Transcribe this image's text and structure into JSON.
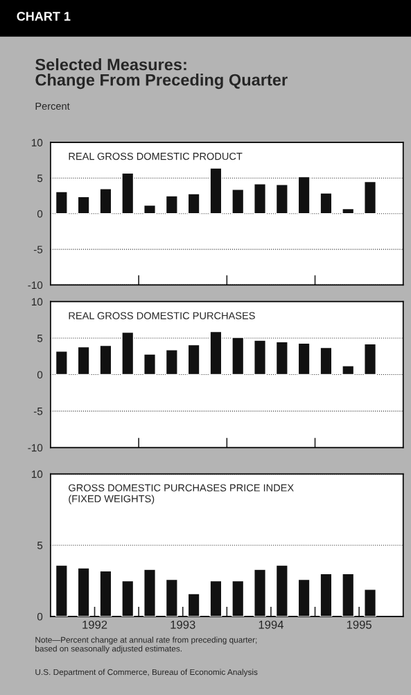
{
  "chart_data": [
    {
      "type": "bar",
      "title": "REAL GROSS DOMESTIC PRODUCT",
      "ylabel": "Percent",
      "annotations": [
        "CHART 1",
        "Selected Measures:\nChange From Preceding Quarter"
      ],
      "x": [
        1992.125,
        1992.375,
        1992.625,
        1992.875,
        1993.125,
        1993.375,
        1993.625,
        1993.875,
        1994.125,
        1994.375,
        1994.625,
        1994.875,
        1995.125,
        1995.375,
        1995.625
      ],
      "series": [
        {
          "color": "#111111",
          "values": [
            3.1,
            2.4,
            3.5,
            5.7,
            1.2,
            2.5,
            2.8,
            6.4,
            3.4,
            4.2,
            4.1,
            5.2,
            2.9,
            0.7,
            4.5
          ]
        }
      ],
      "xlim": [
        1992,
        1996
      ],
      "xticks": [
        {
          "value": 1993,
          "label": null
        },
        {
          "value": 1994,
          "label": null
        },
        {
          "value": 1995,
          "label": null
        }
      ],
      "ylim": [
        -10,
        10
      ],
      "yticks": [
        -10,
        -5,
        0,
        5,
        10
      ],
      "grid": "y",
      "tick_labels": "y"
    },
    {
      "type": "bar",
      "title": "REAL GROSS DOMESTIC PURCHASES",
      "x": [
        1992.125,
        1992.375,
        1992.625,
        1992.875,
        1993.125,
        1993.375,
        1993.625,
        1993.875,
        1994.125,
        1994.375,
        1994.625,
        1994.875,
        1995.125,
        1995.375,
        1995.625
      ],
      "series": [
        {
          "color": "#111111",
          "values": [
            3.2,
            3.8,
            4.0,
            5.8,
            2.8,
            3.4,
            4.1,
            5.9,
            5.1,
            4.7,
            4.5,
            4.3,
            3.7,
            1.2,
            4.2
          ]
        }
      ],
      "xlim": [
        1992,
        1996
      ],
      "xticks": [
        {
          "value": 1993,
          "label": null
        },
        {
          "value": 1994,
          "label": null
        },
        {
          "value": 1995,
          "label": null
        }
      ],
      "ylim": [
        -10,
        10
      ],
      "yticks": [
        -10,
        -5,
        0,
        5,
        10
      ],
      "grid": "y",
      "tick_labels": "y"
    },
    {
      "type": "bar",
      "title": "GROSS DOMESTIC PURCHASES PRICE INDEX\n(FIXED WEIGHTS)",
      "annotations": [
        "Note—Percent change at annual rate from preceding quarter;\nbased on seasonally adjusted estimates.",
        "U.S. Department of Commerce, Bureau of Economic Analysis"
      ],
      "x": [
        1992.125,
        1992.375,
        1992.625,
        1992.875,
        1993.125,
        1993.375,
        1993.625,
        1993.875,
        1994.125,
        1994.375,
        1994.625,
        1994.875,
        1995.125,
        1995.375,
        1995.625
      ],
      "series": [
        {
          "color": "#111111",
          "values": [
            3.6,
            3.4,
            3.2,
            2.5,
            3.3,
            2.6,
            1.6,
            2.5,
            2.5,
            3.3,
            3.6,
            2.6,
            3.0,
            3.0,
            1.9
          ]
        }
      ],
      "xlim": [
        1992,
        1996
      ],
      "xticks": [
        {
          "value": 1992.5,
          "label": "1992"
        },
        {
          "value": 1993,
          "label": null
        },
        {
          "value": 1993.5,
          "label": "1993"
        },
        {
          "value": 1994,
          "label": null
        },
        {
          "value": 1994.5,
          "label": "1994"
        },
        {
          "value": 1995,
          "label": null
        },
        {
          "value": 1995.5,
          "label": "1995"
        }
      ],
      "ylim": [
        0,
        10
      ],
      "yticks": [
        0,
        5,
        10
      ],
      "grid": "y"
    }
  ]
}
